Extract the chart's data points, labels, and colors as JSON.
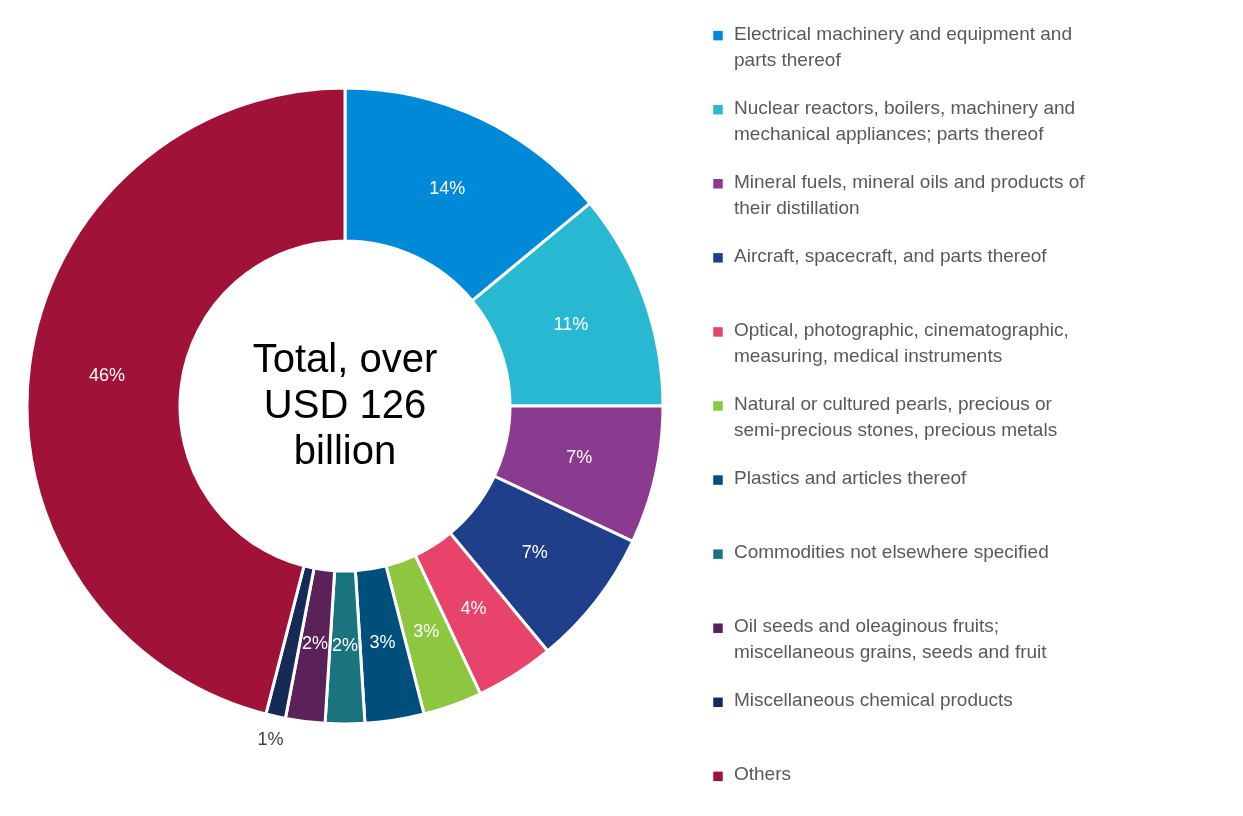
{
  "chart_data": {
    "type": "donut",
    "categories": [
      "Electrical machinery and equipment and parts thereof",
      "Nuclear reactors, boilers, machinery and mechanical appliances; parts thereof",
      "Mineral fuels, mineral oils and products of their distillation",
      "Aircraft, spacecraft, and parts thereof",
      "Optical, photographic, cinematographic, measuring, medical instruments",
      "Natural or cultured pearls, precious or semi-precious stones, precious metals",
      "Plastics and articles thereof",
      "Commodities not elsewhere specified",
      "Oil seeds and oleaginous fruits; miscellaneous grains, seeds and fruit",
      "Miscellaneous chemical products",
      "Others"
    ],
    "values": [
      14,
      11,
      7,
      7,
      4,
      3,
      3,
      2,
      2,
      1,
      46
    ],
    "value_labels": [
      "14%",
      "11%",
      "7%",
      "7%",
      "4%",
      "3%",
      "3%",
      "2%",
      "2%",
      "1%",
      "46%"
    ],
    "colors": [
      "#0089d6",
      "#29b8d2",
      "#8a3a8f",
      "#1f3f8a",
      "#e8436b",
      "#8dc63f",
      "#004e7c",
      "#1a7480",
      "#5a2259",
      "#152a55",
      "#a01237"
    ],
    "annotations": [
      "Total, over USD 126 billion"
    ],
    "legend": "right"
  }
}
